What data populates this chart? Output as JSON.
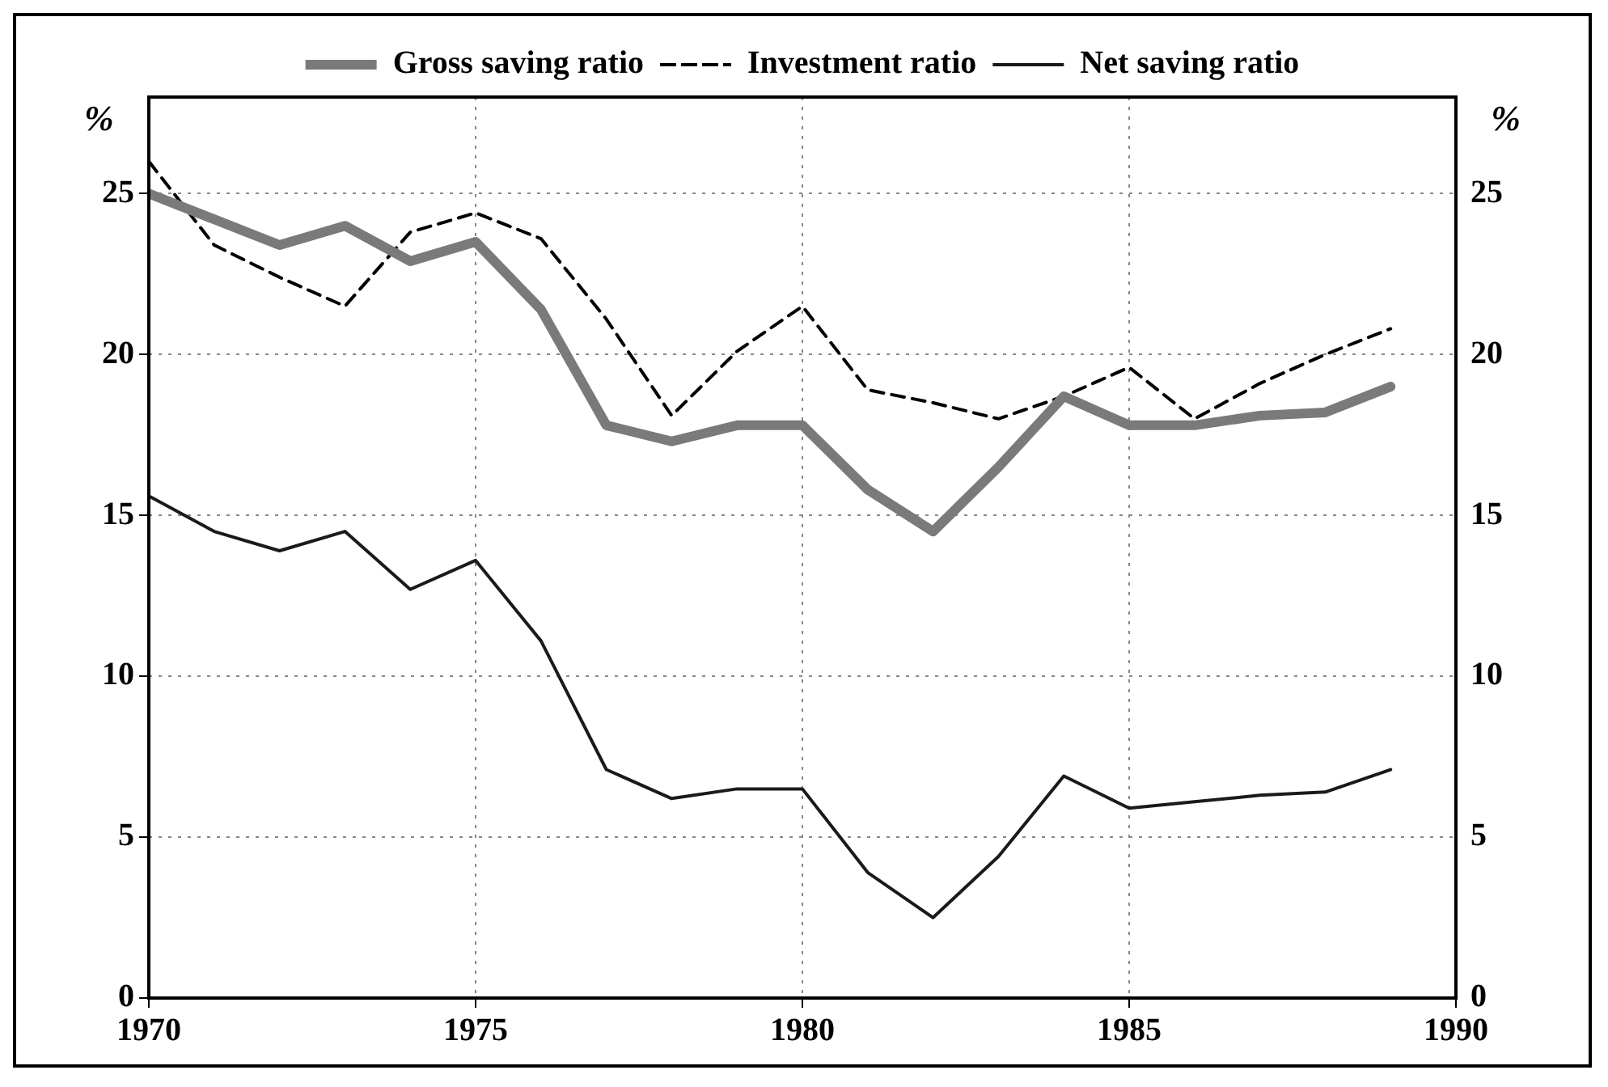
{
  "chart_data": {
    "type": "line",
    "x": [
      1970,
      1971,
      1972,
      1973,
      1974,
      1975,
      1976,
      1977,
      1978,
      1979,
      1980,
      1981,
      1982,
      1983,
      1984,
      1985,
      1986,
      1987,
      1988,
      1989
    ],
    "series": [
      {
        "name": "Gross saving ratio",
        "color": "#7a7a7a",
        "line_style": "solid",
        "values": [
          25.0,
          24.2,
          23.4,
          24.0,
          22.9,
          23.5,
          21.4,
          17.8,
          17.3,
          17.8,
          17.8,
          15.8,
          14.5,
          16.5,
          18.7,
          17.8,
          17.8,
          18.1,
          18.2,
          19.0
        ]
      },
      {
        "name": "Investment ratio",
        "color": "#000000",
        "line_style": "dashed",
        "values": [
          26.0,
          23.4,
          22.4,
          21.5,
          23.8,
          24.4,
          23.6,
          21.1,
          18.1,
          20.1,
          21.5,
          18.9,
          18.5,
          18.0,
          18.7,
          19.6,
          18.0,
          19.1,
          20.0,
          20.8
        ]
      },
      {
        "name": "Net saving ratio",
        "color": "#1a1a1a",
        "line_style": "solid",
        "values": [
          15.6,
          14.5,
          13.9,
          14.5,
          12.7,
          13.6,
          11.1,
          7.1,
          6.2,
          6.5,
          6.5,
          3.9,
          2.5,
          4.4,
          6.9,
          5.9,
          6.1,
          6.3,
          6.4,
          7.1
        ]
      }
    ],
    "xlim": [
      1970,
      1990
    ],
    "xticks": [
      1970,
      1975,
      1980,
      1985,
      1990
    ],
    "ylim": [
      0,
      28
    ],
    "yticks": [
      0,
      5,
      10,
      15,
      20,
      25
    ],
    "y2lim": [
      0,
      28
    ],
    "y2ticks": [
      0,
      5,
      10,
      15,
      20,
      25
    ],
    "ylabel": "%",
    "y2label": "%",
    "grid": true,
    "legend": "top",
    "marker": "none"
  }
}
